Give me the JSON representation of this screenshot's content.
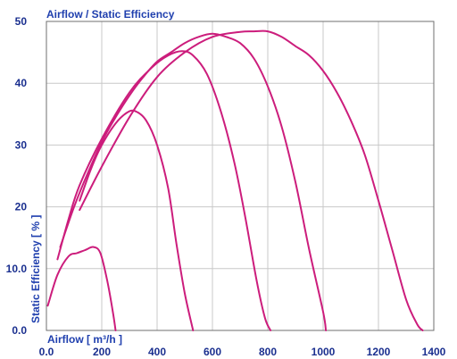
{
  "colors": {
    "curve": "#cc1d7c",
    "text": "#1f3fae",
    "grid": "#c8c8c8"
  },
  "chart_data": {
    "type": "line",
    "title": "Airflow / Static Efficiency",
    "xlabel": "Airflow [ m³/h ]",
    "ylabel": "Static Efficiency [ % ]",
    "xlim": [
      0,
      1400
    ],
    "ylim": [
      0,
      50
    ],
    "grid": true,
    "x_ticks": [
      0,
      200,
      400,
      600,
      800,
      1000,
      1200,
      1400
    ],
    "y_ticks": [
      0,
      10,
      20,
      30,
      40,
      50
    ],
    "x_tick_labels": [
      "0.0",
      "200",
      "400",
      "600",
      "800",
      "1000",
      "1200",
      "1400"
    ],
    "y_tick_labels": [
      "0.0",
      "10.0",
      "20",
      "30",
      "40",
      "50"
    ],
    "series": [
      {
        "x": [
          5,
          40,
          80,
          110,
          140,
          170,
          195,
          220,
          240,
          250
        ],
        "y": [
          4,
          9,
          12,
          12.5,
          13,
          13.5,
          12.5,
          8,
          3,
          0
        ]
      },
      {
        "x": [
          120,
          160,
          200,
          250,
          290,
          320,
          360,
          400,
          440,
          470,
          500,
          530
        ],
        "y": [
          21,
          26,
          30,
          33.5,
          35.2,
          35.5,
          34,
          30,
          23,
          14,
          6,
          0
        ]
      },
      {
        "x": [
          40,
          80,
          120,
          200,
          300,
          380,
          440,
          490,
          530,
          580,
          630,
          680,
          720,
          760,
          790,
          810
        ],
        "y": [
          11.5,
          18,
          23.5,
          31,
          38.5,
          42.5,
          44.5,
          45.2,
          44.5,
          41.5,
          35.5,
          27,
          18,
          8,
          2,
          0
        ]
      },
      {
        "x": [
          50,
          100,
          150,
          200,
          250,
          300,
          350,
          400,
          450,
          500,
          550,
          600,
          650,
          700,
          750,
          800,
          850,
          900,
          950,
          1000,
          1010
        ],
        "y": [
          13.5,
          20,
          25.5,
          30.5,
          34.5,
          38,
          41,
          43.5,
          45,
          46.5,
          47.5,
          48,
          47.5,
          46.5,
          44,
          39.5,
          33,
          24,
          13,
          3,
          0
        ]
      },
      {
        "x": [
          120,
          200,
          300,
          400,
          500,
          600,
          700,
          750,
          800,
          850,
          900,
          950,
          1000,
          1050,
          1100,
          1150,
          1200,
          1250,
          1300,
          1340,
          1360
        ],
        "y": [
          19.5,
          26.5,
          34.5,
          41,
          45,
          47.5,
          48.3,
          48.4,
          48.4,
          47.5,
          46,
          44.5,
          42,
          38.5,
          34,
          28.5,
          21,
          13,
          5,
          1,
          0
        ]
      }
    ]
  }
}
